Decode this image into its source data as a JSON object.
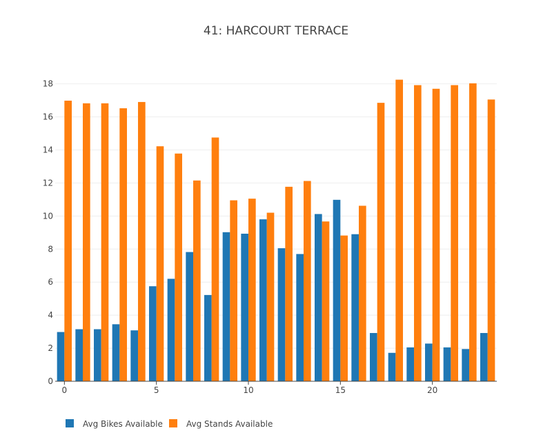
{
  "chart_data": {
    "type": "bar",
    "title": "41: HARCOURT TERRACE",
    "xlabel": "",
    "ylabel": "",
    "x": [
      0,
      1,
      2,
      3,
      4,
      5,
      6,
      7,
      8,
      9,
      10,
      11,
      12,
      13,
      14,
      15,
      16,
      17,
      18,
      19,
      20,
      21,
      22,
      23
    ],
    "x_ticks": [
      0,
      5,
      10,
      15,
      20
    ],
    "y_ticks": [
      0,
      2,
      4,
      6,
      8,
      10,
      12,
      14,
      16,
      18
    ],
    "xlim": [
      -0.5,
      23.5
    ],
    "ylim": [
      0,
      18.9
    ],
    "grid": "horizontal",
    "legend_position": "bottom-left",
    "series": [
      {
        "name": "Avg Bikes Available",
        "color": "#1f77b4",
        "values": [
          2.98,
          3.15,
          3.15,
          3.45,
          3.08,
          5.75,
          6.2,
          7.82,
          5.22,
          9.02,
          8.93,
          9.8,
          8.05,
          7.7,
          10.12,
          10.98,
          8.9,
          2.92,
          1.72,
          2.05,
          2.28,
          2.05,
          1.95,
          2.92
        ]
      },
      {
        "name": "Avg Stands Available",
        "color": "#ff7f0e",
        "values": [
          16.98,
          16.82,
          16.82,
          16.52,
          16.9,
          14.22,
          13.78,
          12.15,
          14.75,
          10.95,
          11.05,
          10.2,
          11.77,
          12.12,
          9.67,
          8.82,
          10.62,
          16.85,
          18.25,
          17.92,
          17.7,
          17.92,
          18.03,
          17.05
        ]
      }
    ]
  }
}
